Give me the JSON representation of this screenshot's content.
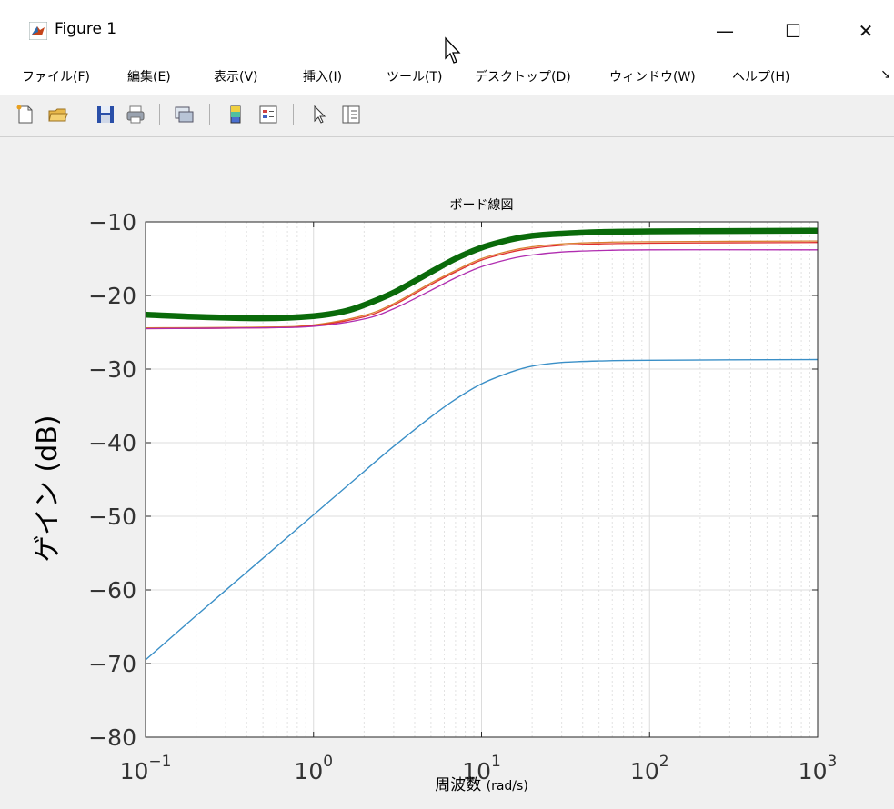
{
  "window": {
    "title": "Figure 1",
    "minimize_glyph": "—",
    "maximize_glyph": "☐",
    "close_glyph": "✕"
  },
  "menubar": {
    "items": [
      "ファイル(F)",
      "編集(E)",
      "表示(V)",
      "挿入(I)",
      "ツール(T)",
      "デスクトップ(D)",
      "ウィンドウ(W)",
      "ヘルプ(H)"
    ],
    "overflow_glyph": "↘"
  },
  "toolbar": {
    "icons": [
      "new-figure-icon",
      "open-file-icon",
      "save-icon",
      "print-icon",
      "link-plot-icon",
      "colorbar-icon",
      "legend-icon",
      "edit-plot-icon",
      "property-inspector-icon"
    ]
  },
  "chart_data": {
    "type": "line",
    "title": "ボード線図",
    "xlabel_prefix": "周波数 ",
    "xlabel_unit": "(rad/s)",
    "ylabel": "ゲイン (dB)",
    "xscale": "log",
    "xlim": [
      0.1,
      1000
    ],
    "ylim": [
      -80,
      -10
    ],
    "yticks": [
      -80,
      -70,
      -60,
      -50,
      -40,
      -30,
      -20,
      -10
    ],
    "xticks": [
      {
        "value": 0.1,
        "base": "10",
        "exp": "−1"
      },
      {
        "value": 1,
        "base": "10",
        "exp": "0"
      },
      {
        "value": 10,
        "base": "10",
        "exp": "1"
      },
      {
        "value": 100,
        "base": "10",
        "exp": "2"
      },
      {
        "value": 1000,
        "base": "10",
        "exp": "3"
      }
    ],
    "grid": true,
    "minor_grid": true,
    "series": [
      {
        "color": "#3a8fc7",
        "width": 1.4,
        "x": [
          0.1,
          0.2,
          0.5,
          1,
          2,
          3,
          5,
          7,
          10,
          15,
          20,
          30,
          50,
          100,
          1000
        ],
        "y": [
          -69.5,
          -63.5,
          -55.7,
          -49.8,
          -43.9,
          -40.5,
          -36.5,
          -34.1,
          -32.0,
          -30.4,
          -29.6,
          -29.1,
          -28.9,
          -28.8,
          -28.7
        ]
      },
      {
        "color": "#d98030",
        "width": 1.3,
        "x": [
          0.1,
          0.5,
          1,
          2,
          3,
          5,
          7,
          10,
          15,
          20,
          30,
          50,
          100,
          1000
        ],
        "y": [
          -24.4,
          -24.3,
          -24.0,
          -22.7,
          -21.1,
          -18.3,
          -16.6,
          -15.0,
          -13.9,
          -13.4,
          -13.0,
          -12.8,
          -12.7,
          -12.6
        ]
      },
      {
        "color": "#e03030",
        "width": 1.3,
        "x": [
          0.1,
          0.5,
          1,
          2,
          3,
          5,
          7,
          10,
          15,
          20,
          30,
          50,
          100,
          1000
        ],
        "y": [
          -24.5,
          -24.4,
          -24.1,
          -22.9,
          -21.3,
          -18.5,
          -16.8,
          -15.2,
          -14.1,
          -13.6,
          -13.2,
          -13.0,
          -12.9,
          -12.8
        ]
      },
      {
        "color": "#b02db0",
        "width": 1.3,
        "x": [
          0.1,
          0.5,
          1,
          2,
          3,
          5,
          7,
          10,
          15,
          20,
          30,
          50,
          100,
          1000
        ],
        "y": [
          -24.5,
          -24.4,
          -24.2,
          -23.2,
          -21.8,
          -19.3,
          -17.6,
          -16.1,
          -15.0,
          -14.5,
          -14.1,
          -13.9,
          -13.8,
          -13.8
        ]
      },
      {
        "color": "#0a6a0a",
        "width": 6.5,
        "x": [
          0.1,
          0.2,
          0.5,
          1,
          1.5,
          2,
          3,
          5,
          7,
          10,
          15,
          20,
          30,
          50,
          100,
          1000
        ],
        "y": [
          -22.6,
          -22.9,
          -23.1,
          -22.8,
          -22.2,
          -21.3,
          -19.6,
          -16.8,
          -15.0,
          -13.5,
          -12.4,
          -11.9,
          -11.6,
          -11.4,
          -11.3,
          -11.2
        ]
      }
    ]
  }
}
